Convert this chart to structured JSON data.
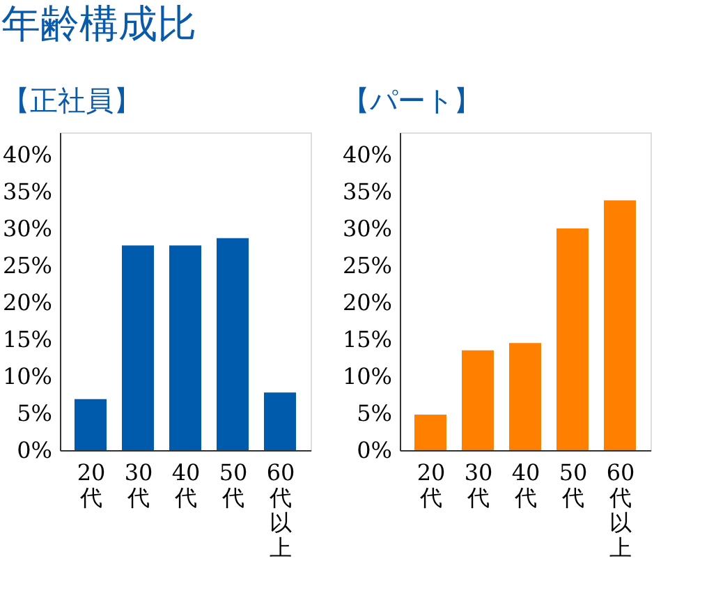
{
  "chart_data": [
    {
      "type": "bar",
      "title": "年齢構成比",
      "subtitle": "【正社員】",
      "categories": [
        "20代",
        "30代",
        "40代",
        "50代",
        "60代以上"
      ],
      "values": [
        6.9,
        27.7,
        27.7,
        28.7,
        7.8
      ],
      "color": "#005bac",
      "ylim": [
        0,
        43
      ],
      "yticks": [
        {
          "value": 0,
          "label": "0%"
        },
        {
          "value": 5,
          "label": "5%"
        },
        {
          "value": 10,
          "label": "10%"
        },
        {
          "value": 15,
          "label": "15%"
        },
        {
          "value": 20,
          "label": "20%"
        },
        {
          "value": 25,
          "label": "25%"
        },
        {
          "value": 30,
          "label": "30%"
        },
        {
          "value": 35,
          "label": "35%"
        },
        {
          "value": 40,
          "label": "40%"
        }
      ],
      "grid": false
    },
    {
      "type": "bar",
      "subtitle": "【パート】",
      "categories": [
        "20代",
        "30代",
        "40代",
        "50代",
        "60代以上"
      ],
      "values": [
        4.8,
        13.5,
        14.5,
        30.0,
        33.8
      ],
      "color": "#ff7f00",
      "ylim": [
        0,
        43
      ],
      "yticks": [
        {
          "value": 0,
          "label": "0%"
        },
        {
          "value": 5,
          "label": "5%"
        },
        {
          "value": 10,
          "label": "10%"
        },
        {
          "value": 15,
          "label": "15%"
        },
        {
          "value": 20,
          "label": "20%"
        },
        {
          "value": 25,
          "label": "25%"
        },
        {
          "value": 30,
          "label": "30%"
        },
        {
          "value": 35,
          "label": "35%"
        },
        {
          "value": 40,
          "label": "40%"
        }
      ],
      "grid": false
    }
  ]
}
